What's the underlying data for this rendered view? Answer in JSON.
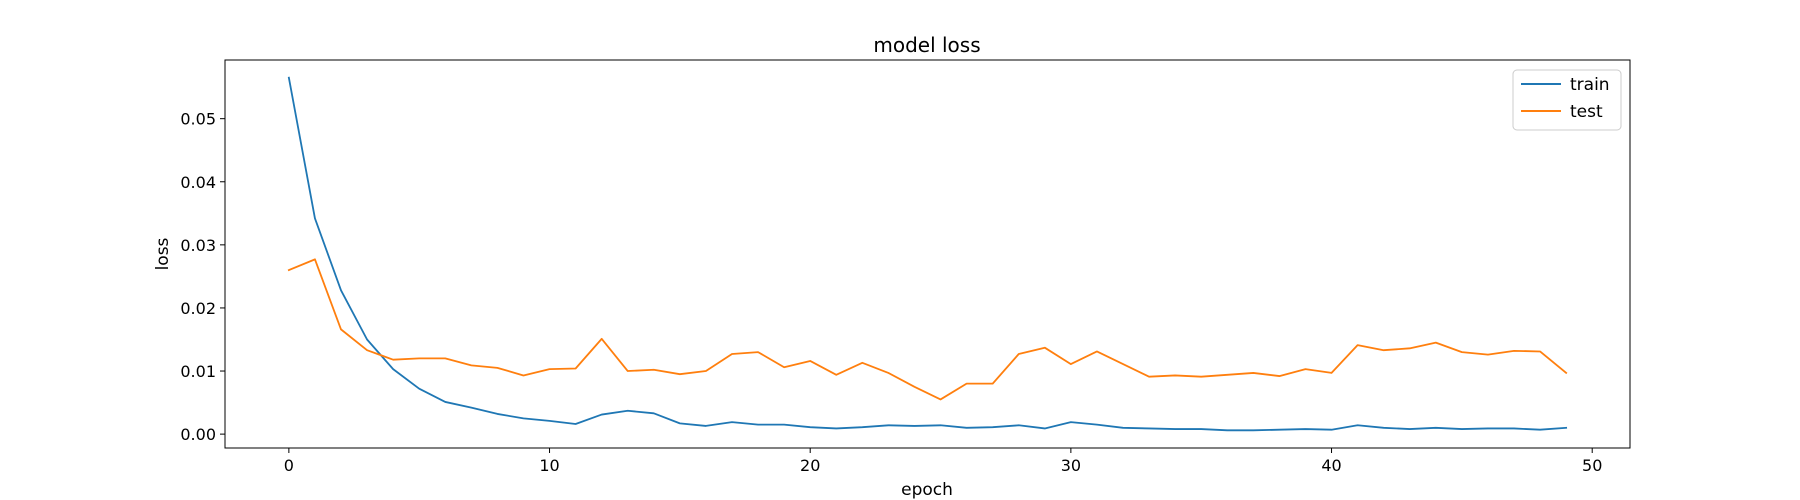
{
  "chart_data": {
    "type": "line",
    "title": "model loss",
    "xlabel": "epoch",
    "ylabel": "loss",
    "xlim": [
      -2.45,
      51.45
    ],
    "ylim": [
      -0.0022,
      0.0593
    ],
    "xticks": [
      0,
      10,
      20,
      30,
      40,
      50
    ],
    "yticks": [
      0.0,
      0.01,
      0.02,
      0.03,
      0.04,
      0.05
    ],
    "ytick_labels": [
      "0.00",
      "0.01",
      "0.02",
      "0.03",
      "0.04",
      "0.05"
    ],
    "grid": false,
    "legend_position": "top-right",
    "x": [
      0,
      1,
      2,
      3,
      4,
      5,
      6,
      7,
      8,
      9,
      10,
      11,
      12,
      13,
      14,
      15,
      16,
      17,
      18,
      19,
      20,
      21,
      22,
      23,
      24,
      25,
      26,
      27,
      28,
      29,
      30,
      31,
      32,
      33,
      34,
      35,
      36,
      37,
      38,
      39,
      40,
      41,
      42,
      43,
      44,
      45,
      46,
      47,
      48,
      49
    ],
    "series": [
      {
        "name": "train",
        "color": "#1f77b4",
        "values": [
          0.0565,
          0.0342,
          0.0228,
          0.015,
          0.0103,
          0.0072,
          0.0051,
          0.0042,
          0.0032,
          0.0025,
          0.0021,
          0.0016,
          0.0031,
          0.0037,
          0.0033,
          0.0017,
          0.0013,
          0.0019,
          0.0015,
          0.0015,
          0.0011,
          0.0009,
          0.0011,
          0.0014,
          0.0013,
          0.0014,
          0.001,
          0.0011,
          0.0014,
          0.0009,
          0.0019,
          0.0015,
          0.001,
          0.0009,
          0.0008,
          0.0008,
          0.0006,
          0.0006,
          0.0007,
          0.0008,
          0.0007,
          0.0014,
          0.001,
          0.0008,
          0.001,
          0.0008,
          0.0009,
          0.0009,
          0.0007,
          0.001
        ]
      },
      {
        "name": "test",
        "color": "#ff7f0e",
        "values": [
          0.026,
          0.0277,
          0.0166,
          0.0133,
          0.0118,
          0.012,
          0.012,
          0.0109,
          0.0105,
          0.0093,
          0.0103,
          0.0104,
          0.0151,
          0.01,
          0.0102,
          0.0095,
          0.01,
          0.0127,
          0.013,
          0.0106,
          0.0116,
          0.0094,
          0.0113,
          0.0097,
          0.0075,
          0.0055,
          0.008,
          0.008,
          0.0127,
          0.0137,
          0.0111,
          0.0131,
          0.0111,
          0.0091,
          0.0093,
          0.0091,
          0.0094,
          0.0097,
          0.0092,
          0.0103,
          0.0097,
          0.0141,
          0.0133,
          0.0136,
          0.0145,
          0.013,
          0.0126,
          0.0132,
          0.0131,
          0.0097
        ]
      }
    ]
  }
}
